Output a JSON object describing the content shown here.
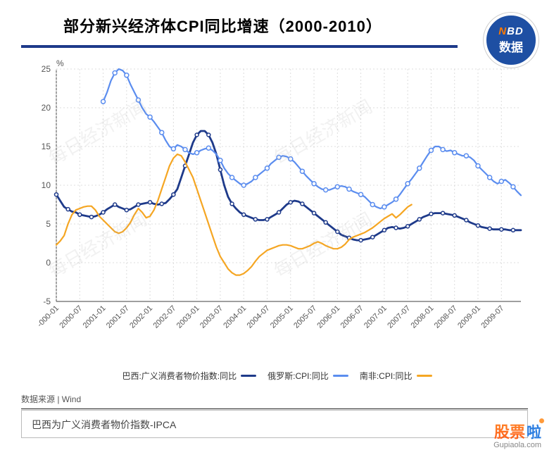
{
  "chart": {
    "type": "line",
    "title": "部分新兴经济体CPI同比增速（2000-2010）",
    "title_fontsize": 22,
    "badge": {
      "top_n": "N",
      "top_bd": "BD",
      "bottom": "数据"
    },
    "background_color": "#ffffff",
    "grid_color": "#dcdcdc",
    "grid_major_color": "#c8c8c8",
    "axis_color": "#666666",
    "label_fontsize": 12,
    "yaxis": {
      "unit_label": "%",
      "min": -5,
      "max": 25,
      "tick_step": 5,
      "ticks": [
        -5,
        0,
        5,
        10,
        15,
        20,
        25
      ]
    },
    "xaxis": {
      "labels": [
        "-000-01",
        "2000-07",
        "2001-01",
        "2001-07",
        "2002-01",
        "2002-07",
        "2003-01",
        "2003-07",
        "2004-01",
        "2004-07",
        "2005-01",
        "2005-07",
        "2006-01",
        "2006-07",
        "2007-01",
        "2007-07",
        "2008-01",
        "2008-07",
        "2009-01",
        "2009-07"
      ],
      "label_count": 20,
      "points_per_label": 6,
      "total_points": 120
    },
    "watermark_text": "每日经济新闻",
    "series": [
      {
        "name": "巴西:广义消费者物价指数:同比",
        "color": "#1e3a8a",
        "line_width": 2.8,
        "marker": "circle",
        "marker_size": 2.5,
        "marker_fill": "#ffffff",
        "values": [
          8.8,
          8.0,
          7.2,
          6.9,
          6.6,
          6.5,
          6.2,
          6.1,
          6.0,
          5.9,
          6.0,
          6.2,
          6.5,
          6.9,
          7.2,
          7.5,
          7.2,
          7.0,
          6.8,
          6.9,
          7.2,
          7.5,
          7.6,
          7.7,
          7.8,
          7.6,
          7.5,
          7.6,
          7.7,
          8.2,
          8.8,
          9.5,
          11.0,
          12.5,
          14.0,
          15.5,
          16.5,
          17.0,
          17.0,
          16.5,
          15.5,
          14.0,
          12.0,
          10.0,
          8.5,
          7.6,
          7.0,
          6.5,
          6.2,
          6.0,
          5.8,
          5.6,
          5.5,
          5.5,
          5.6,
          5.9,
          6.2,
          6.5,
          7.0,
          7.5,
          7.8,
          8.0,
          7.9,
          7.6,
          7.2,
          6.8,
          6.4,
          6.0,
          5.6,
          5.2,
          4.8,
          4.4,
          4.0,
          3.6,
          3.4,
          3.2,
          3.0,
          2.9,
          2.9,
          3.0,
          3.1,
          3.3,
          3.6,
          3.9,
          4.2,
          4.5,
          4.6,
          4.5,
          4.4,
          4.5,
          4.7,
          5.0,
          5.3,
          5.6,
          5.9,
          6.1,
          6.3,
          6.4,
          6.4,
          6.4,
          6.3,
          6.2,
          6.1,
          5.9,
          5.7,
          5.5,
          5.2,
          5.0,
          4.8,
          4.6,
          4.5,
          4.4,
          4.3,
          4.3,
          4.3,
          4.3,
          4.2,
          4.2,
          4.2,
          4.2
        ]
      },
      {
        "name": "俄罗斯:CPI:同比",
        "color": "#5b8def",
        "line_width": 2.2,
        "marker": "circle",
        "marker_size": 3,
        "marker_fill": "#ffffff",
        "values": [
          null,
          null,
          null,
          null,
          null,
          null,
          null,
          null,
          null,
          null,
          null,
          null,
          20.8,
          22.0,
          23.5,
          24.5,
          25.0,
          24.8,
          24.2,
          23.0,
          22.0,
          21.0,
          20.0,
          19.2,
          18.8,
          18.2,
          17.5,
          16.8,
          15.8,
          15.0,
          14.7,
          15.2,
          15.0,
          14.6,
          14.2,
          14.0,
          14.2,
          14.5,
          14.7,
          14.8,
          14.5,
          14.0,
          13.2,
          12.2,
          11.5,
          11.0,
          10.6,
          10.2,
          10.0,
          10.2,
          10.5,
          11.0,
          11.4,
          11.8,
          12.2,
          12.8,
          13.2,
          13.6,
          13.8,
          13.7,
          13.4,
          13.0,
          12.4,
          11.8,
          11.2,
          10.7,
          10.2,
          9.8,
          9.5,
          9.4,
          9.4,
          9.6,
          9.8,
          9.9,
          9.8,
          9.5,
          9.2,
          9.0,
          8.8,
          8.5,
          8.0,
          7.5,
          7.2,
          7.0,
          7.2,
          7.5,
          7.8,
          8.2,
          8.8,
          9.5,
          10.2,
          10.8,
          11.5,
          12.2,
          13.0,
          13.8,
          14.5,
          15.0,
          15.0,
          14.6,
          14.4,
          14.5,
          14.2,
          14.0,
          13.8,
          13.8,
          13.6,
          13.2,
          12.5,
          12.0,
          11.5,
          11.0,
          10.5,
          10.2,
          10.5,
          10.7,
          10.3,
          9.8,
          9.2,
          8.7
        ]
      },
      {
        "name": "南非:CPI:同比",
        "color": "#f5a623",
        "line_width": 2.2,
        "marker": "none",
        "values": [
          2.3,
          2.8,
          3.5,
          5.0,
          6.2,
          6.8,
          7.0,
          7.2,
          7.3,
          7.3,
          6.8,
          6.0,
          5.5,
          5.0,
          4.5,
          4.0,
          3.8,
          4.0,
          4.5,
          5.2,
          6.2,
          7.0,
          6.5,
          5.8,
          6.0,
          6.8,
          8.0,
          9.5,
          11.0,
          12.5,
          13.5,
          14.0,
          13.8,
          13.0,
          12.0,
          11.0,
          9.5,
          8.0,
          6.5,
          5.0,
          3.5,
          2.0,
          0.8,
          0.0,
          -0.8,
          -1.3,
          -1.6,
          -1.6,
          -1.4,
          -1.0,
          -0.5,
          0.2,
          0.8,
          1.2,
          1.6,
          1.8,
          2.0,
          2.2,
          2.3,
          2.3,
          2.2,
          2.0,
          1.8,
          1.8,
          2.0,
          2.2,
          2.5,
          2.7,
          2.5,
          2.2,
          2.0,
          1.8,
          1.8,
          2.0,
          2.4,
          3.0,
          3.3,
          3.5,
          3.7,
          3.9,
          4.2,
          4.5,
          4.9,
          5.3,
          5.7,
          6.0,
          6.3,
          5.8,
          6.2,
          6.7,
          7.2,
          7.5,
          null,
          null,
          null,
          null,
          null,
          null,
          null,
          null,
          null,
          null,
          null,
          null,
          null,
          null,
          null,
          null,
          null,
          null,
          null,
          null,
          null,
          null,
          null,
          null,
          null,
          null,
          null,
          null
        ]
      }
    ]
  },
  "legend": {
    "items": [
      {
        "label": "巴西:广义消费者物价指数:同比",
        "color": "#1e3a8a"
      },
      {
        "label": "俄罗斯:CPI:同比",
        "color": "#5b8def"
      },
      {
        "label": "南非:CPI:同比",
        "color": "#f5a623"
      }
    ]
  },
  "source": {
    "label": "数据来源 | Wind"
  },
  "note": {
    "text": "巴西为广义消费者物价指数-IPCA"
  },
  "bottom_logo": {
    "cn": "股票",
    "la": "啦",
    "url": "Gupiaola.com"
  }
}
